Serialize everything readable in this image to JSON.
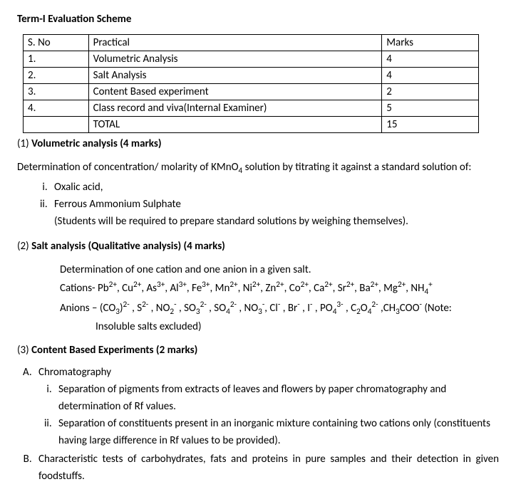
{
  "title": "Term-I Evaluation Scheme",
  "table": {
    "headers": {
      "sno": "S. No",
      "practical": "Practical",
      "marks": "Marks"
    },
    "rows": [
      {
        "sno": "1.",
        "practical": "Volumetric Analysis",
        "marks": "4"
      },
      {
        "sno": "2.",
        "practical": "Salt Analysis",
        "marks": "4"
      },
      {
        "sno": "3.",
        "practical": "Content Based experiment",
        "marks": "2"
      },
      {
        "sno": "4.",
        "practical": "Class record and viva(Internal Examiner)",
        "marks": "5"
      },
      {
        "sno": "",
        "practical": "TOTAL",
        "marks": "15"
      }
    ]
  },
  "section1": {
    "prefix": "(1) ",
    "title": "Volumetric analysis (4 marks)",
    "intro_html": "Determination of concentration/ molarity of KMnO<sub>4</sub> solution by titrating it against a standard solution of:",
    "items": [
      "Oxalic acid,",
      "Ferrous Ammonium Sulphate"
    ],
    "note": "(Students will be required to prepare standard solutions by weighing themselves)."
  },
  "section2": {
    "prefix": "(2) ",
    "title": "Salt analysis (Qualitative analysis) (4 marks)",
    "line1": "Determination of one cation and one anion in a given salt.",
    "cations_html": "Cations- Pb<sup>2+</sup>, Cu<sup>2+</sup>, As<sup>3+</sup>, Al<sup>3+</sup>, Fe<sup>3+</sup>, Mn<sup>2+</sup>, Ni<sup>2+</sup>, Zn<sup>2+</sup>, Co<sup>2+</sup>, Ca<sup>2+</sup>, Sr<sup>2+</sup>, Ba<sup>2+</sup>, Mg<sup>2+</sup>, NH<sub>4</sub><sup>+</sup>",
    "anions_html": "Anions – (CO<sub>3</sub>)<sup>2-</sup> , S<sup>2-</sup> , NO<sub>2</sub><sup>-</sup> , SO<sub>3</sub><sup>2-</sup> , SO<sub>4</sub><sup>2-</sup> , NO<sub>3</sub><sup>-</sup>, Cl<sup>-</sup> , Br<sup>-</sup> , I<sup>-</sup> , PO<sub>4</sub><sup>3-</sup> , C<sub>2</sub>O<sub>4</sub><sup>2-</sup> ,CH<sub>3</sub>COO<sup>-</sup> (Note:",
    "note_cont": "Insoluble salts excluded)"
  },
  "section3": {
    "prefix": "(3) ",
    "title": "Content Based Experiments (2 marks)",
    "A": {
      "label": "Chromatography",
      "items": [
        "Separation of pigments from extracts of leaves and flowers by paper chromatography and determination of Rf values.",
        "Separation of constituents present in an inorganic mixture containing two cations only (constituents having large difference in Rf values to be provided)."
      ]
    },
    "B": "Characteristic tests of carbohydrates, fats and proteins in pure samples and their detection in given foodstuffs."
  }
}
